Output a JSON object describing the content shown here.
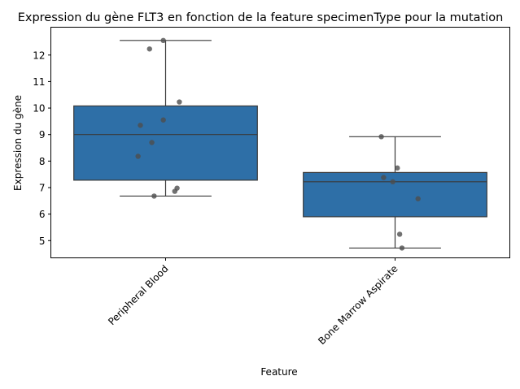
{
  "chart_data": {
    "type": "box",
    "title": "Expression du gène FLT3 en fonction de la feature specimenType pour la mutation",
    "xlabel": "Feature",
    "ylabel": "Expression du gène",
    "ylim": [
      4.35,
      13.05
    ],
    "yticks": [
      5,
      6,
      7,
      8,
      9,
      10,
      11,
      12
    ],
    "grid": false,
    "box_color": "#2e6fa7",
    "point_color": "#4d4d4d",
    "categories": [
      "Peripheral Blood",
      "Bone Marrow Aspirate"
    ],
    "boxes": [
      {
        "category": "Peripheral Blood",
        "whisker_low": 6.68,
        "q1": 7.28,
        "median": 9.0,
        "q3": 10.08,
        "whisker_high": 12.55,
        "points": [
          {
            "jitter": -0.01,
            "y": 12.55
          },
          {
            "jitter": -0.07,
            "y": 12.23
          },
          {
            "jitter": 0.06,
            "y": 10.23
          },
          {
            "jitter": -0.01,
            "y": 9.55
          },
          {
            "jitter": -0.11,
            "y": 9.35
          },
          {
            "jitter": -0.06,
            "y": 8.7
          },
          {
            "jitter": -0.12,
            "y": 8.18
          },
          {
            "jitter": 0.05,
            "y": 6.98
          },
          {
            "jitter": 0.04,
            "y": 6.86
          },
          {
            "jitter": -0.05,
            "y": 6.68
          }
        ]
      },
      {
        "category": "Bone Marrow Aspirate",
        "whisker_low": 4.72,
        "q1": 5.9,
        "median": 7.22,
        "q3": 7.57,
        "whisker_high": 8.92,
        "points": [
          {
            "jitter": -0.06,
            "y": 8.92
          },
          {
            "jitter": 0.01,
            "y": 7.74
          },
          {
            "jitter": -0.05,
            "y": 7.38
          },
          {
            "jitter": -0.01,
            "y": 7.22
          },
          {
            "jitter": 0.1,
            "y": 6.58
          },
          {
            "jitter": 0.02,
            "y": 5.24
          },
          {
            "jitter": 0.03,
            "y": 4.72
          }
        ]
      }
    ]
  }
}
